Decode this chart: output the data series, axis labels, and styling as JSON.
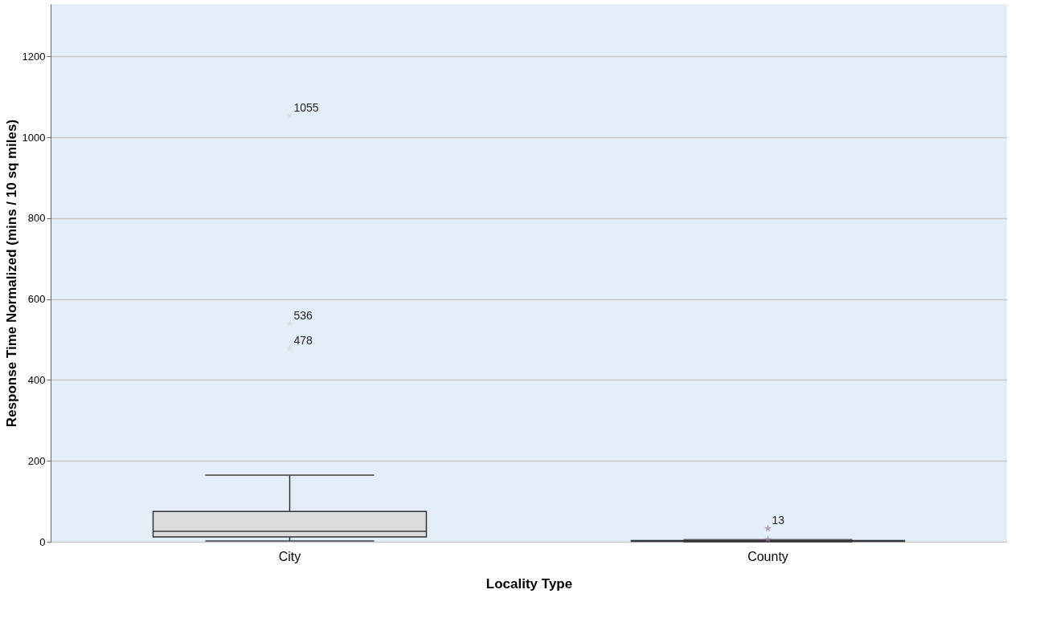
{
  "chart_data": {
    "type": "box",
    "xlabel": "Locality Type",
    "ylabel": "Response Time Normalized (mins / 10 sq miles)",
    "categories": [
      "City",
      "County"
    ],
    "boxes": [
      {
        "low": 2,
        "q1": 12,
        "median": 26,
        "q3": 75,
        "high": 165,
        "outliers": [
          1054,
          539,
          478
        ]
      },
      {
        "low": 0,
        "q1": 1,
        "median": 2,
        "q3": 3,
        "high": 5,
        "outliers": [
          33,
          6
        ]
      }
    ],
    "colors": [
      "#dcdcdc",
      "#9e7aa0"
    ],
    "marker": "star",
    "annotations": [
      "1055",
      "536",
      "478",
      "13"
    ],
    "ylim": [
      0,
      1330
    ],
    "yticks": [
      0,
      200,
      400,
      600,
      800,
      1000,
      1200
    ],
    "grid": "y"
  }
}
